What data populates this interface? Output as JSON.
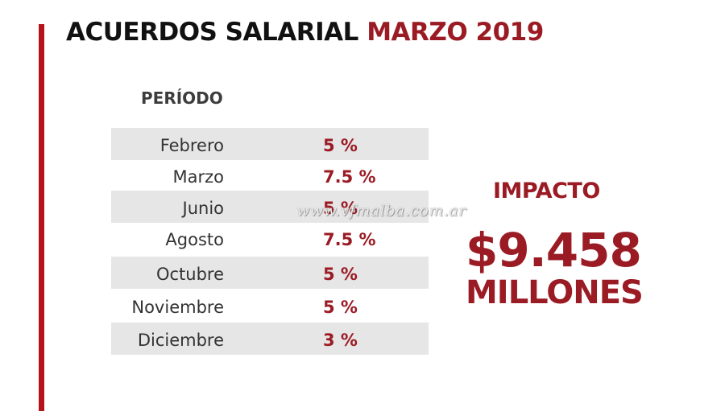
{
  "title": {
    "main": "ACUERDOS SALARIAL",
    "accent": "MARZO 2019"
  },
  "table": {
    "header": "PERÍODO",
    "rows": [
      {
        "month": "Febrero",
        "percent": "5 %"
      },
      {
        "month": "Marzo",
        "percent": "7.5 %"
      },
      {
        "month": "Junio",
        "percent": "5 %"
      },
      {
        "month": "Agosto",
        "percent": "7.5 %"
      },
      {
        "month": "Octubre",
        "percent": "5 %"
      },
      {
        "month": "Noviembre",
        "percent": "5 %"
      },
      {
        "month": "Diciembre",
        "percent": "3 %"
      }
    ]
  },
  "impact": {
    "label": "IMPACTO",
    "amount": "$9.458",
    "unit": "MILLONES"
  },
  "watermark": "www.vfmalba.com.ar",
  "colors": {
    "accent": "#9b1b24",
    "bar": "#b5121b",
    "row_shade": "#e6e6e6",
    "text": "#333333"
  }
}
